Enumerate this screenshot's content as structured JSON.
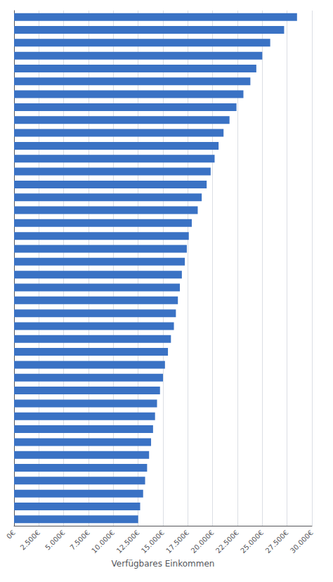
{
  "chart_data": {
    "type": "bar",
    "orientation": "horizontal",
    "values": [
      28500,
      27200,
      25800,
      25000,
      24400,
      23800,
      23100,
      22400,
      21700,
      21100,
      20600,
      20200,
      19800,
      19400,
      18900,
      18500,
      17900,
      17600,
      17400,
      17200,
      16900,
      16700,
      16500,
      16300,
      16100,
      15800,
      15500,
      15200,
      15000,
      14700,
      14400,
      14200,
      14000,
      13800,
      13600,
      13400,
      13200,
      13000,
      12700,
      12500
    ],
    "color": "#3a72c4",
    "xlabel": "Verfügbares Einkommen",
    "xlim": [
      0,
      30000
    ],
    "xticks": [
      {
        "value": 0,
        "label": "0€"
      },
      {
        "value": 2500,
        "label": "2.500€"
      },
      {
        "value": 5000,
        "label": "5.000€"
      },
      {
        "value": 7500,
        "label": "7.500€"
      },
      {
        "value": 10000,
        "label": "10.000€"
      },
      {
        "value": 12500,
        "label": "12.500€"
      },
      {
        "value": 15000,
        "label": "15.000€"
      },
      {
        "value": 17500,
        "label": "17.500€"
      },
      {
        "value": 20000,
        "label": "20.000€"
      },
      {
        "value": 22500,
        "label": "22.500€"
      },
      {
        "value": 25000,
        "label": "25.000€"
      },
      {
        "value": 27500,
        "label": "27.500€"
      },
      {
        "value": 30000,
        "label": "30.000€"
      }
    ],
    "grid": true,
    "tick_labels": "x"
  }
}
